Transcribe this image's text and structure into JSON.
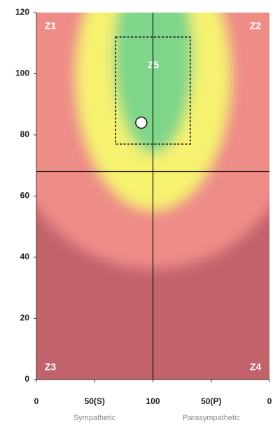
{
  "chart_data": {
    "type": "zone",
    "xlim": [
      0,
      200
    ],
    "xticks": [
      0,
      {
        "value": 50,
        "label": "50(S)"
      },
      100,
      {
        "value": 150,
        "label": "50(P)"
      },
      {
        "value": 200,
        "label": "0"
      }
    ],
    "ylim": [
      0,
      120
    ],
    "yticks": [
      0,
      20,
      40,
      60,
      80,
      100,
      120
    ],
    "xlabels": [
      "Sympathetic",
      "Parasympathetic"
    ],
    "zones": [
      "Z1",
      "Z2",
      "Z3",
      "Z4",
      "Z5"
    ],
    "crosshair": {
      "x": 100,
      "y": 68
    },
    "target": {
      "x": [
        68,
        132
      ],
      "y": [
        77,
        112
      ]
    },
    "point": {
      "x": 90,
      "y": 84
    }
  }
}
